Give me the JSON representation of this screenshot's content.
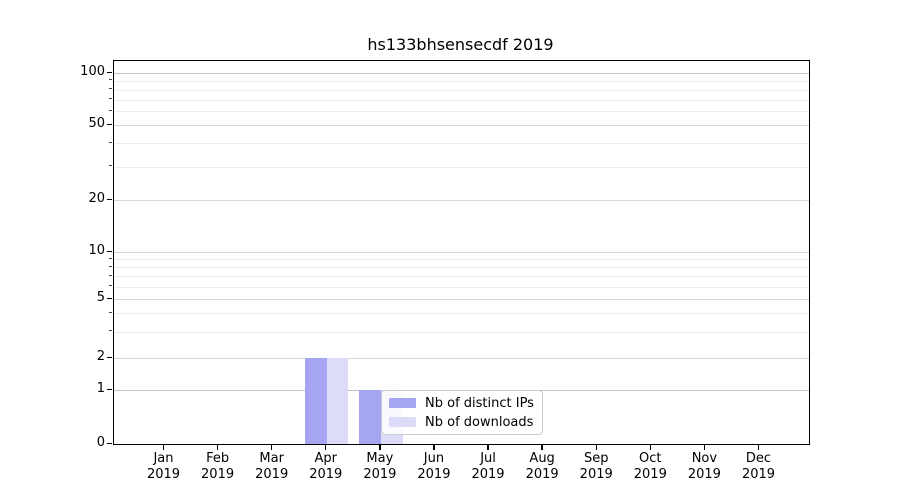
{
  "chart_data": {
    "type": "bar",
    "title": "hs133bhsensecdf 2019",
    "categories": [
      "Jan",
      "Feb",
      "Mar",
      "Apr",
      "May",
      "Jun",
      "Jul",
      "Aug",
      "Sep",
      "Oct",
      "Nov",
      "Dec"
    ],
    "category_year": "2019",
    "series": [
      {
        "name": "Nb of distinct IPs",
        "color": "#a5a5f2",
        "values": [
          0,
          0,
          0,
          2,
          1,
          0,
          0,
          0,
          0,
          0,
          0,
          0
        ]
      },
      {
        "name": "Nb of downloads",
        "color": "#dcdcf9",
        "values": [
          0,
          0,
          0,
          2,
          1,
          0,
          0,
          0,
          0,
          0,
          0,
          0
        ]
      }
    ],
    "y_ticks": [
      0,
      1,
      2,
      5,
      10,
      20,
      50,
      100
    ],
    "y_minor_gridlines": [
      3,
      4,
      6,
      7,
      8,
      9,
      30,
      40,
      60,
      70,
      80,
      90
    ],
    "yscale": "symlog",
    "ylim": [
      0,
      117
    ],
    "xlabel": "",
    "ylabel": "",
    "grid": true,
    "legend_position": "lower-center"
  }
}
